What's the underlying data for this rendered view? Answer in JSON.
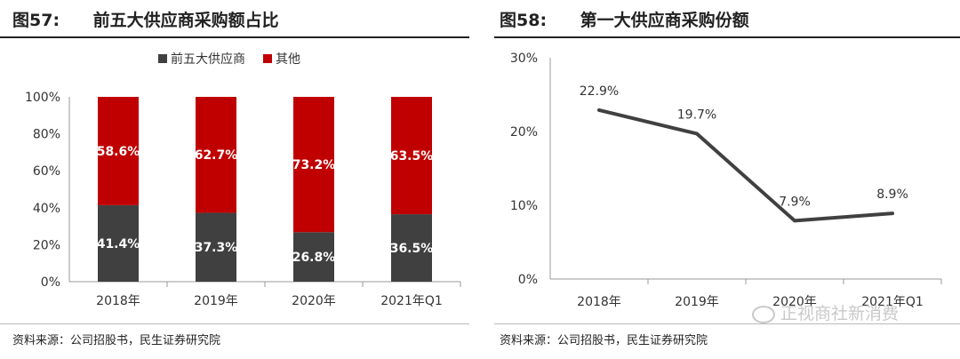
{
  "left_figure": {
    "number": "图57:",
    "title": "前五大供应商采购额占比",
    "source": "资料来源：公司招股书，民生证券研究院"
  },
  "right_figure": {
    "number": "图58:",
    "title": "第一大供应商采购份额",
    "source": "资料来源：公司招股书，民生证券研究院"
  },
  "watermark": "正视商社新消费",
  "colors": {
    "top5": "#404040",
    "other": "#c00000",
    "line": "#404040"
  },
  "chart_data": [
    {
      "type": "bar",
      "stacked": true,
      "categories": [
        "2018年",
        "2019年",
        "2020年",
        "2021年Q1"
      ],
      "series": [
        {
          "name": "前五大供应商",
          "values": [
            41.4,
            37.3,
            26.8,
            36.5
          ],
          "labels": [
            "41.4%",
            "37.3%",
            "26.8%",
            "36.5%"
          ]
        },
        {
          "name": "其他",
          "values": [
            58.6,
            62.7,
            73.2,
            63.5
          ],
          "labels": [
            "58.6%",
            "62.7%",
            "73.2%",
            "63.5%"
          ]
        }
      ],
      "yticks": [
        "0%",
        "20%",
        "40%",
        "60%",
        "80%",
        "100%"
      ],
      "ylim": [
        0,
        100
      ],
      "legend": "top-center",
      "grid": false
    },
    {
      "type": "line",
      "categories": [
        "2018年",
        "2019年",
        "2020年",
        "2021年Q1"
      ],
      "values": [
        22.9,
        19.7,
        7.9,
        8.9
      ],
      "labels": [
        "22.9%",
        "19.7%",
        "7.9%",
        "8.9%"
      ],
      "yticks": [
        "0%",
        "10%",
        "20%",
        "30%"
      ],
      "ylim": [
        0,
        30
      ],
      "grid": false
    }
  ]
}
